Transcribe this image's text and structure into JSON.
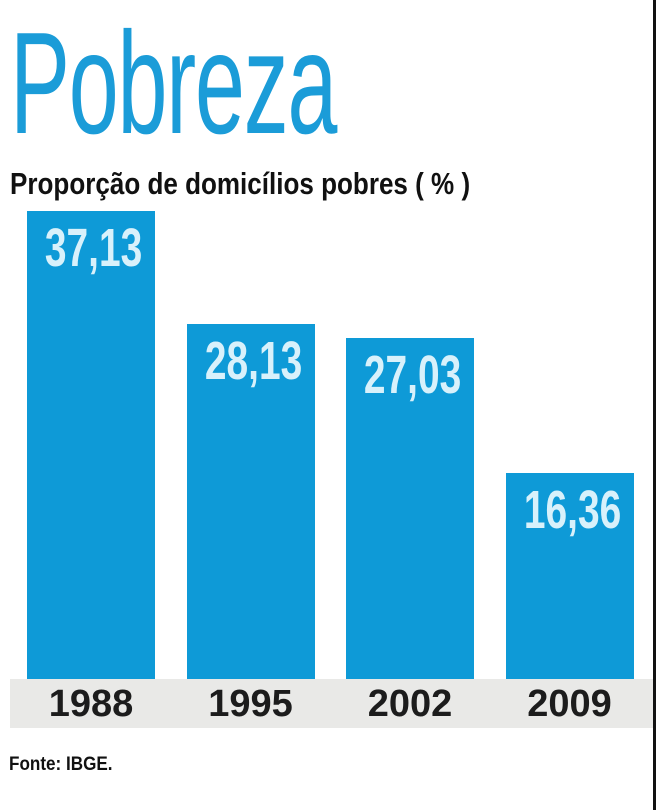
{
  "page": {
    "title": "Pobreza",
    "subtitle": "Proporção de domicílios pobres ( % )",
    "source": "Fonte: IBGE."
  },
  "colors": {
    "bar": "#0e9ad7",
    "bar_value_text": "#d8f1fb",
    "title_text": "#1b9cd8",
    "axis_band": "#e9e9e7",
    "year_text": "#1c1c1c",
    "frame_line": "#121212"
  },
  "chart_data": {
    "type": "bar",
    "title": "Pobreza",
    "subtitle": "Proporção de domicílios pobres ( % )",
    "source": "Fonte: IBGE.",
    "categories": [
      "1988",
      "1995",
      "2002",
      "2009"
    ],
    "values": [
      37.13,
      28.13,
      27.03,
      16.36
    ],
    "value_labels": [
      "37,13",
      "28,13",
      "27,03",
      "16,36"
    ],
    "xlabel": "",
    "ylabel": "Proporção de domicílios pobres (%)",
    "ylim": [
      0,
      37.13
    ],
    "grid": false,
    "legend": false,
    "value_label_position": "inside-top",
    "decimal_separator": ","
  }
}
